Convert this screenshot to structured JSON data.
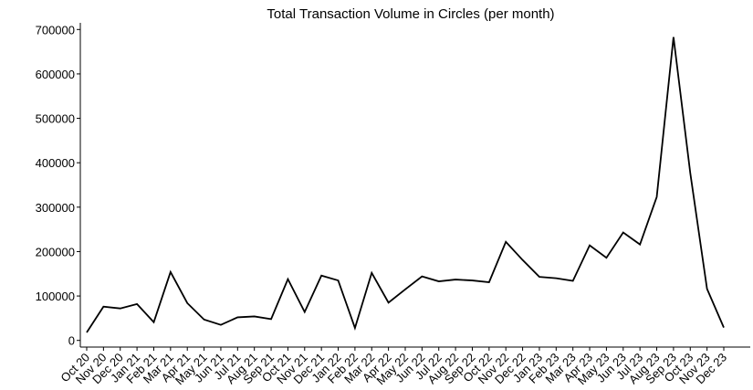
{
  "chart_data": {
    "type": "line",
    "title": "Total Transaction Volume in Circles (per month)",
    "categories": [
      "Oct 20",
      "Nov 20",
      "Dec 20",
      "Jan 21",
      "Feb 21",
      "Mar 21",
      "Apr 21",
      "May 21",
      "Jun 21",
      "Jul 21",
      "Aug 21",
      "Sep 21",
      "Oct 21",
      "Nov 21",
      "Dec 21",
      "Jan 22",
      "Feb 22",
      "Mar 22",
      "Apr 22",
      "May 22",
      "Jun 22",
      "Jul 22",
      "Aug 22",
      "Sep 22",
      "Oct 22",
      "Nov 22",
      "Dec 22",
      "Jan 23",
      "Feb 23",
      "Mar 23",
      "Apr 23",
      "May 23",
      "Jun 23",
      "Jul 23",
      "Aug 23",
      "Sep 23",
      "Oct 23",
      "Nov 23",
      "Dec 23"
    ],
    "values": [
      18000,
      76000,
      72000,
      82000,
      41000,
      154000,
      84000,
      47000,
      35000,
      52000,
      54000,
      48000,
      138000,
      64000,
      146000,
      135000,
      28000,
      152000,
      85000,
      115000,
      144000,
      133000,
      137000,
      135000,
      131000,
      222000,
      181000,
      143000,
      140000,
      134000,
      214000,
      186000,
      243000,
      216000,
      323000,
      683000,
      377000,
      116000,
      29000
    ],
    "color": "#000000",
    "ylim": [
      -15000,
      715000
    ],
    "yticks": [
      0,
      100000,
      200000,
      300000,
      400000,
      500000,
      600000,
      700000
    ],
    "grid": false
  }
}
